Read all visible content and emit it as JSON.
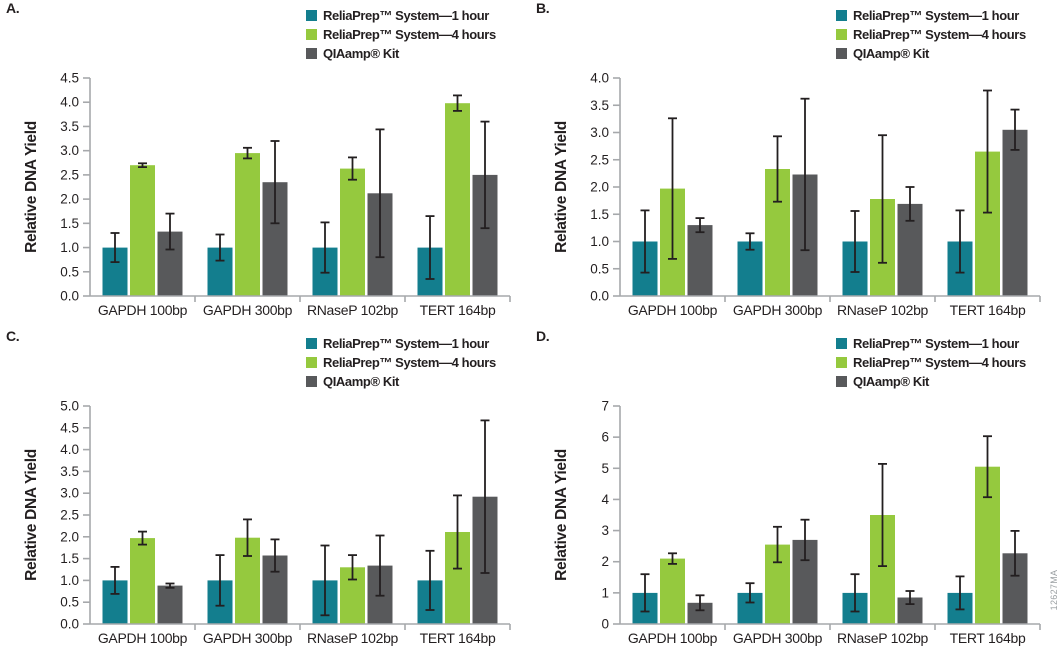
{
  "page": {
    "footnote": "12627MA",
    "background": "#ffffff"
  },
  "colors": {
    "series_1hour": "#137e8e",
    "series_4hours": "#95c93e",
    "series_qiaamp": "#58595b",
    "axis": "#a6a8ab",
    "error_bar": "#231f20",
    "text": "#231f20",
    "footnote_text": "#9ba0a3"
  },
  "chart_data": [
    {
      "panel_label": "A.",
      "type": "bar",
      "title": "",
      "xlabel": "",
      "ylabel": "Relative DNA Yield",
      "ylim": [
        0,
        4.5
      ],
      "ytick_step": 0.5,
      "ytick_decimals": 1,
      "grid": false,
      "legend_position": "top-right",
      "error_bars": true,
      "categories": [
        "GAPDH 100bp",
        "GAPDH 300bp",
        "RNaseP 102bp",
        "TERT 164bp"
      ],
      "series": [
        {
          "name": "ReliaPrep™ System—1 hour",
          "color": "#137e8e",
          "values": [
            1.0,
            1.0,
            1.0,
            1.0
          ],
          "errors": [
            0.3,
            0.27,
            0.52,
            0.65
          ]
        },
        {
          "name": "ReliaPrep™ System—4 hours",
          "color": "#95c93e",
          "values": [
            2.7,
            2.95,
            2.63,
            3.98
          ],
          "errors": [
            0.04,
            0.11,
            0.23,
            0.16
          ]
        },
        {
          "name": "QIAamp® Kit",
          "color": "#58595b",
          "values": [
            1.33,
            2.35,
            2.12,
            2.5
          ],
          "errors": [
            0.37,
            0.85,
            1.32,
            1.1
          ]
        }
      ]
    },
    {
      "panel_label": "B.",
      "type": "bar",
      "title": "",
      "xlabel": "",
      "ylabel": "Relative DNA Yield",
      "ylim": [
        0,
        4.0
      ],
      "ytick_step": 0.5,
      "ytick_decimals": 1,
      "grid": false,
      "legend_position": "top-right",
      "error_bars": true,
      "categories": [
        "GAPDH 100bp",
        "GAPDH 300bp",
        "RNaseP 102bp",
        "TERT 164bp"
      ],
      "series": [
        {
          "name": "ReliaPrep™ System—1 hour",
          "color": "#137e8e",
          "values": [
            1.0,
            1.0,
            1.0,
            1.0
          ],
          "errors": [
            0.57,
            0.15,
            0.56,
            0.57
          ]
        },
        {
          "name": "ReliaPrep™ System—4 hours",
          "color": "#95c93e",
          "values": [
            1.97,
            2.33,
            1.78,
            2.65
          ],
          "errors": [
            1.29,
            0.6,
            1.17,
            1.12
          ]
        },
        {
          "name": "QIAamp® Kit",
          "color": "#58595b",
          "values": [
            1.3,
            2.23,
            1.69,
            3.05
          ],
          "errors": [
            0.13,
            1.39,
            0.31,
            0.37
          ]
        }
      ]
    },
    {
      "panel_label": "C.",
      "type": "bar",
      "title": "",
      "xlabel": "",
      "ylabel": "Relative DNA Yield",
      "ylim": [
        0,
        5.0
      ],
      "ytick_step": 0.5,
      "ytick_decimals": 1,
      "grid": false,
      "legend_position": "top-right",
      "error_bars": true,
      "categories": [
        "GAPDH 100bp",
        "GAPDH 300bp",
        "RNaseP 102bp",
        "TERT 164bp"
      ],
      "series": [
        {
          "name": "ReliaPrep™ System—1 hour",
          "color": "#137e8e",
          "values": [
            1.0,
            1.0,
            1.0,
            1.0
          ],
          "errors": [
            0.31,
            0.58,
            0.8,
            0.68
          ]
        },
        {
          "name": "ReliaPrep™ System—4 hours",
          "color": "#95c93e",
          "values": [
            1.97,
            1.98,
            1.3,
            2.11
          ],
          "errors": [
            0.15,
            0.42,
            0.28,
            0.84
          ]
        },
        {
          "name": "QIAamp® Kit",
          "color": "#58595b",
          "values": [
            0.88,
            1.57,
            1.34,
            2.92
          ],
          "errors": [
            0.05,
            0.37,
            0.69,
            1.75
          ]
        }
      ]
    },
    {
      "panel_label": "D.",
      "type": "bar",
      "title": "",
      "xlabel": "",
      "ylabel": "Relative DNA Yield",
      "ylim": [
        0,
        7
      ],
      "ytick_step": 1,
      "ytick_decimals": 0,
      "grid": false,
      "legend_position": "top-right",
      "error_bars": true,
      "categories": [
        "GAPDH 100bp",
        "GAPDH 300bp",
        "RNaseP 102bp",
        "TERT 164bp"
      ],
      "series": [
        {
          "name": "ReliaPrep™ System—1 hour",
          "color": "#137e8e",
          "values": [
            1.0,
            1.0,
            1.0,
            1.0
          ],
          "errors": [
            0.6,
            0.31,
            0.6,
            0.53
          ]
        },
        {
          "name": "ReliaPrep™ System—4 hours",
          "color": "#95c93e",
          "values": [
            2.1,
            2.55,
            3.5,
            5.05
          ],
          "errors": [
            0.17,
            0.57,
            1.64,
            0.98
          ]
        },
        {
          "name": "QIAamp® Kit",
          "color": "#58595b",
          "values": [
            0.68,
            2.7,
            0.85,
            2.27
          ],
          "errors": [
            0.24,
            0.65,
            0.21,
            0.72
          ]
        }
      ]
    }
  ]
}
